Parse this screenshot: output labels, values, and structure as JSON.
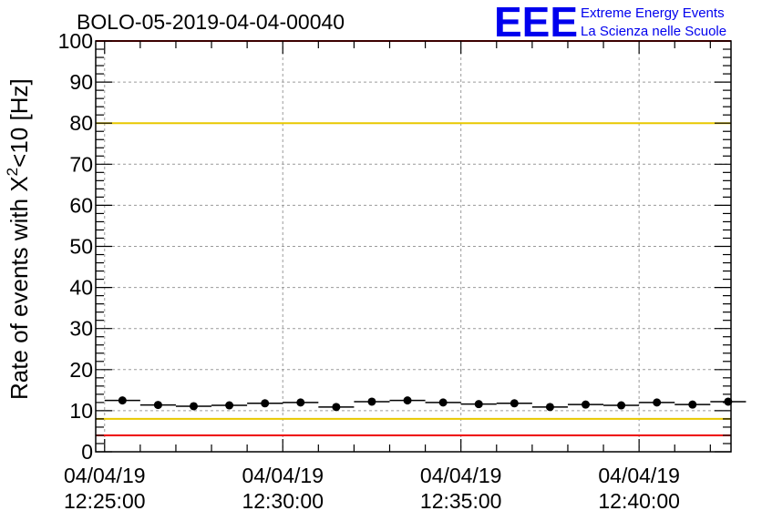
{
  "logo": {
    "mark": "EEE",
    "line1": "Extreme Energy Events",
    "line2": "La Scienza nelle Scuole",
    "color": "#0000ee"
  },
  "colors": {
    "red_limit": "#ee0000",
    "yellow_limit": "#e8c800",
    "grid": "#9a9a9a",
    "marker": "#000000"
  },
  "chart_data": {
    "type": "scatter",
    "title": "BOLO-05-2019-04-04-00040",
    "ylabel": "Rate of events with X",
    "ylabel_sup": "2",
    "ylabel_tail": "<10 [Hz]",
    "xlabel": "",
    "ylim": [
      0,
      100
    ],
    "y_ticks": [
      0,
      10,
      20,
      30,
      40,
      50,
      60,
      70,
      80,
      90,
      100
    ],
    "grid": true,
    "x_range_minutes": [
      -0.25,
      17.58
    ],
    "x_ticks": [
      {
        "date": "04/04/19",
        "time": "12:25:00",
        "minute": 0
      },
      {
        "date": "04/04/19",
        "time": "12:30:00",
        "minute": 5
      },
      {
        "date": "04/04/19",
        "time": "12:35:00",
        "minute": 10
      },
      {
        "date": "04/04/19",
        "time": "12:40:00",
        "minute": 15
      }
    ],
    "bin_width_minutes": 1,
    "points": [
      {
        "x": "12:25:30",
        "y": 12.5
      },
      {
        "x": "12:26:30",
        "y": 11.4
      },
      {
        "x": "12:27:30",
        "y": 11.1
      },
      {
        "x": "12:28:30",
        "y": 11.3
      },
      {
        "x": "12:29:30",
        "y": 11.8
      },
      {
        "x": "12:30:30",
        "y": 12.0
      },
      {
        "x": "12:31:30",
        "y": 10.9
      },
      {
        "x": "12:32:30",
        "y": 12.2
      },
      {
        "x": "12:33:30",
        "y": 12.5
      },
      {
        "x": "12:34:30",
        "y": 12.0
      },
      {
        "x": "12:35:30",
        "y": 11.6
      },
      {
        "x": "12:36:30",
        "y": 11.8
      },
      {
        "x": "12:37:30",
        "y": 10.9
      },
      {
        "x": "12:38:30",
        "y": 11.5
      },
      {
        "x": "12:39:30",
        "y": 11.3
      },
      {
        "x": "12:40:30",
        "y": 12.0
      },
      {
        "x": "12:41:30",
        "y": 11.5
      },
      {
        "x": "12:42:30",
        "y": 12.2
      }
    ],
    "reference_lines": [
      {
        "y": 100,
        "color": "red"
      },
      {
        "y": 80,
        "color": "yellow"
      },
      {
        "y": 8,
        "color": "yellow"
      },
      {
        "y": 4,
        "color": "red"
      }
    ]
  }
}
